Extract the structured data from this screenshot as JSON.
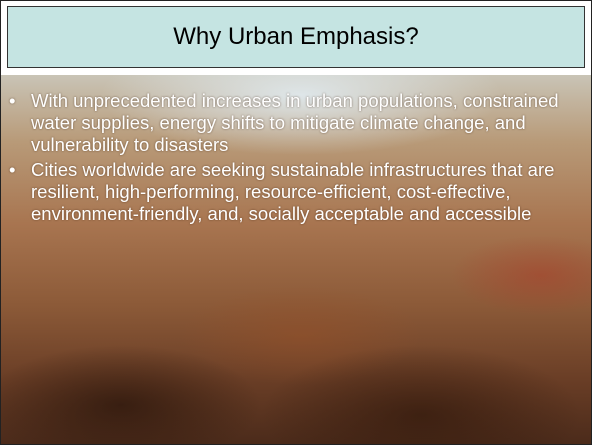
{
  "slide": {
    "title": "Why Urban Emphasis?",
    "bullets": [
      "With unprecedented increases in urban populations, constrained water supplies, energy shifts to mitigate climate change, and vulnerability to disasters",
      "Cities worldwide are seeking sustainable infrastructures that are resilient, high-performing, resource-efficient, cost-effective, environment-friendly, and, socially acceptable and accessible"
    ]
  }
}
